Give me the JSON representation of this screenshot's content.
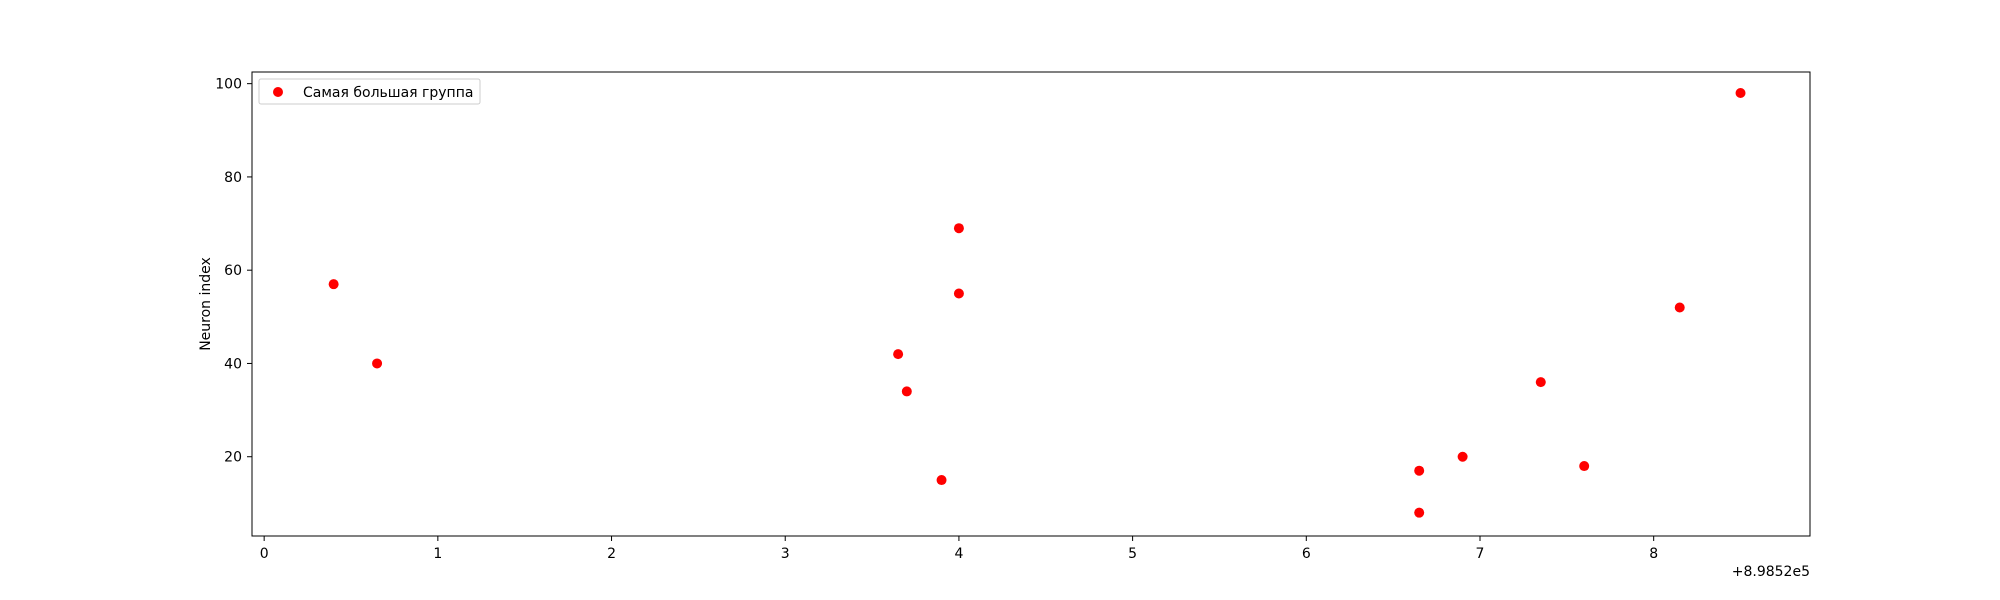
{
  "chart_data": {
    "type": "scatter",
    "title": "",
    "xlabel": "",
    "ylabel": "Neuron index",
    "offset_label": "+8.9852e5",
    "x_ticks": [
      0,
      1,
      2,
      3,
      4,
      5,
      6,
      7,
      8
    ],
    "y_ticks": [
      20,
      40,
      60,
      80,
      100
    ],
    "xlim": [
      -0.07,
      8.9
    ],
    "ylim": [
      3,
      102.5
    ],
    "grid": false,
    "legend": {
      "placement": "upper-left",
      "entries": [
        "Самая большая группа"
      ]
    },
    "colors": {
      "marker": "#ff0000"
    },
    "series": [
      {
        "name": "Самая большая группа",
        "points": [
          {
            "x": 0.4,
            "y": 57
          },
          {
            "x": 0.65,
            "y": 40
          },
          {
            "x": 3.65,
            "y": 42
          },
          {
            "x": 3.7,
            "y": 34
          },
          {
            "x": 3.9,
            "y": 15
          },
          {
            "x": 4.0,
            "y": 69
          },
          {
            "x": 4.0,
            "y": 55
          },
          {
            "x": 6.65,
            "y": 17
          },
          {
            "x": 6.65,
            "y": 8
          },
          {
            "x": 6.9,
            "y": 20
          },
          {
            "x": 7.35,
            "y": 36
          },
          {
            "x": 7.6,
            "y": 18
          },
          {
            "x": 8.15,
            "y": 52
          },
          {
            "x": 8.5,
            "y": 98
          }
        ]
      }
    ]
  }
}
